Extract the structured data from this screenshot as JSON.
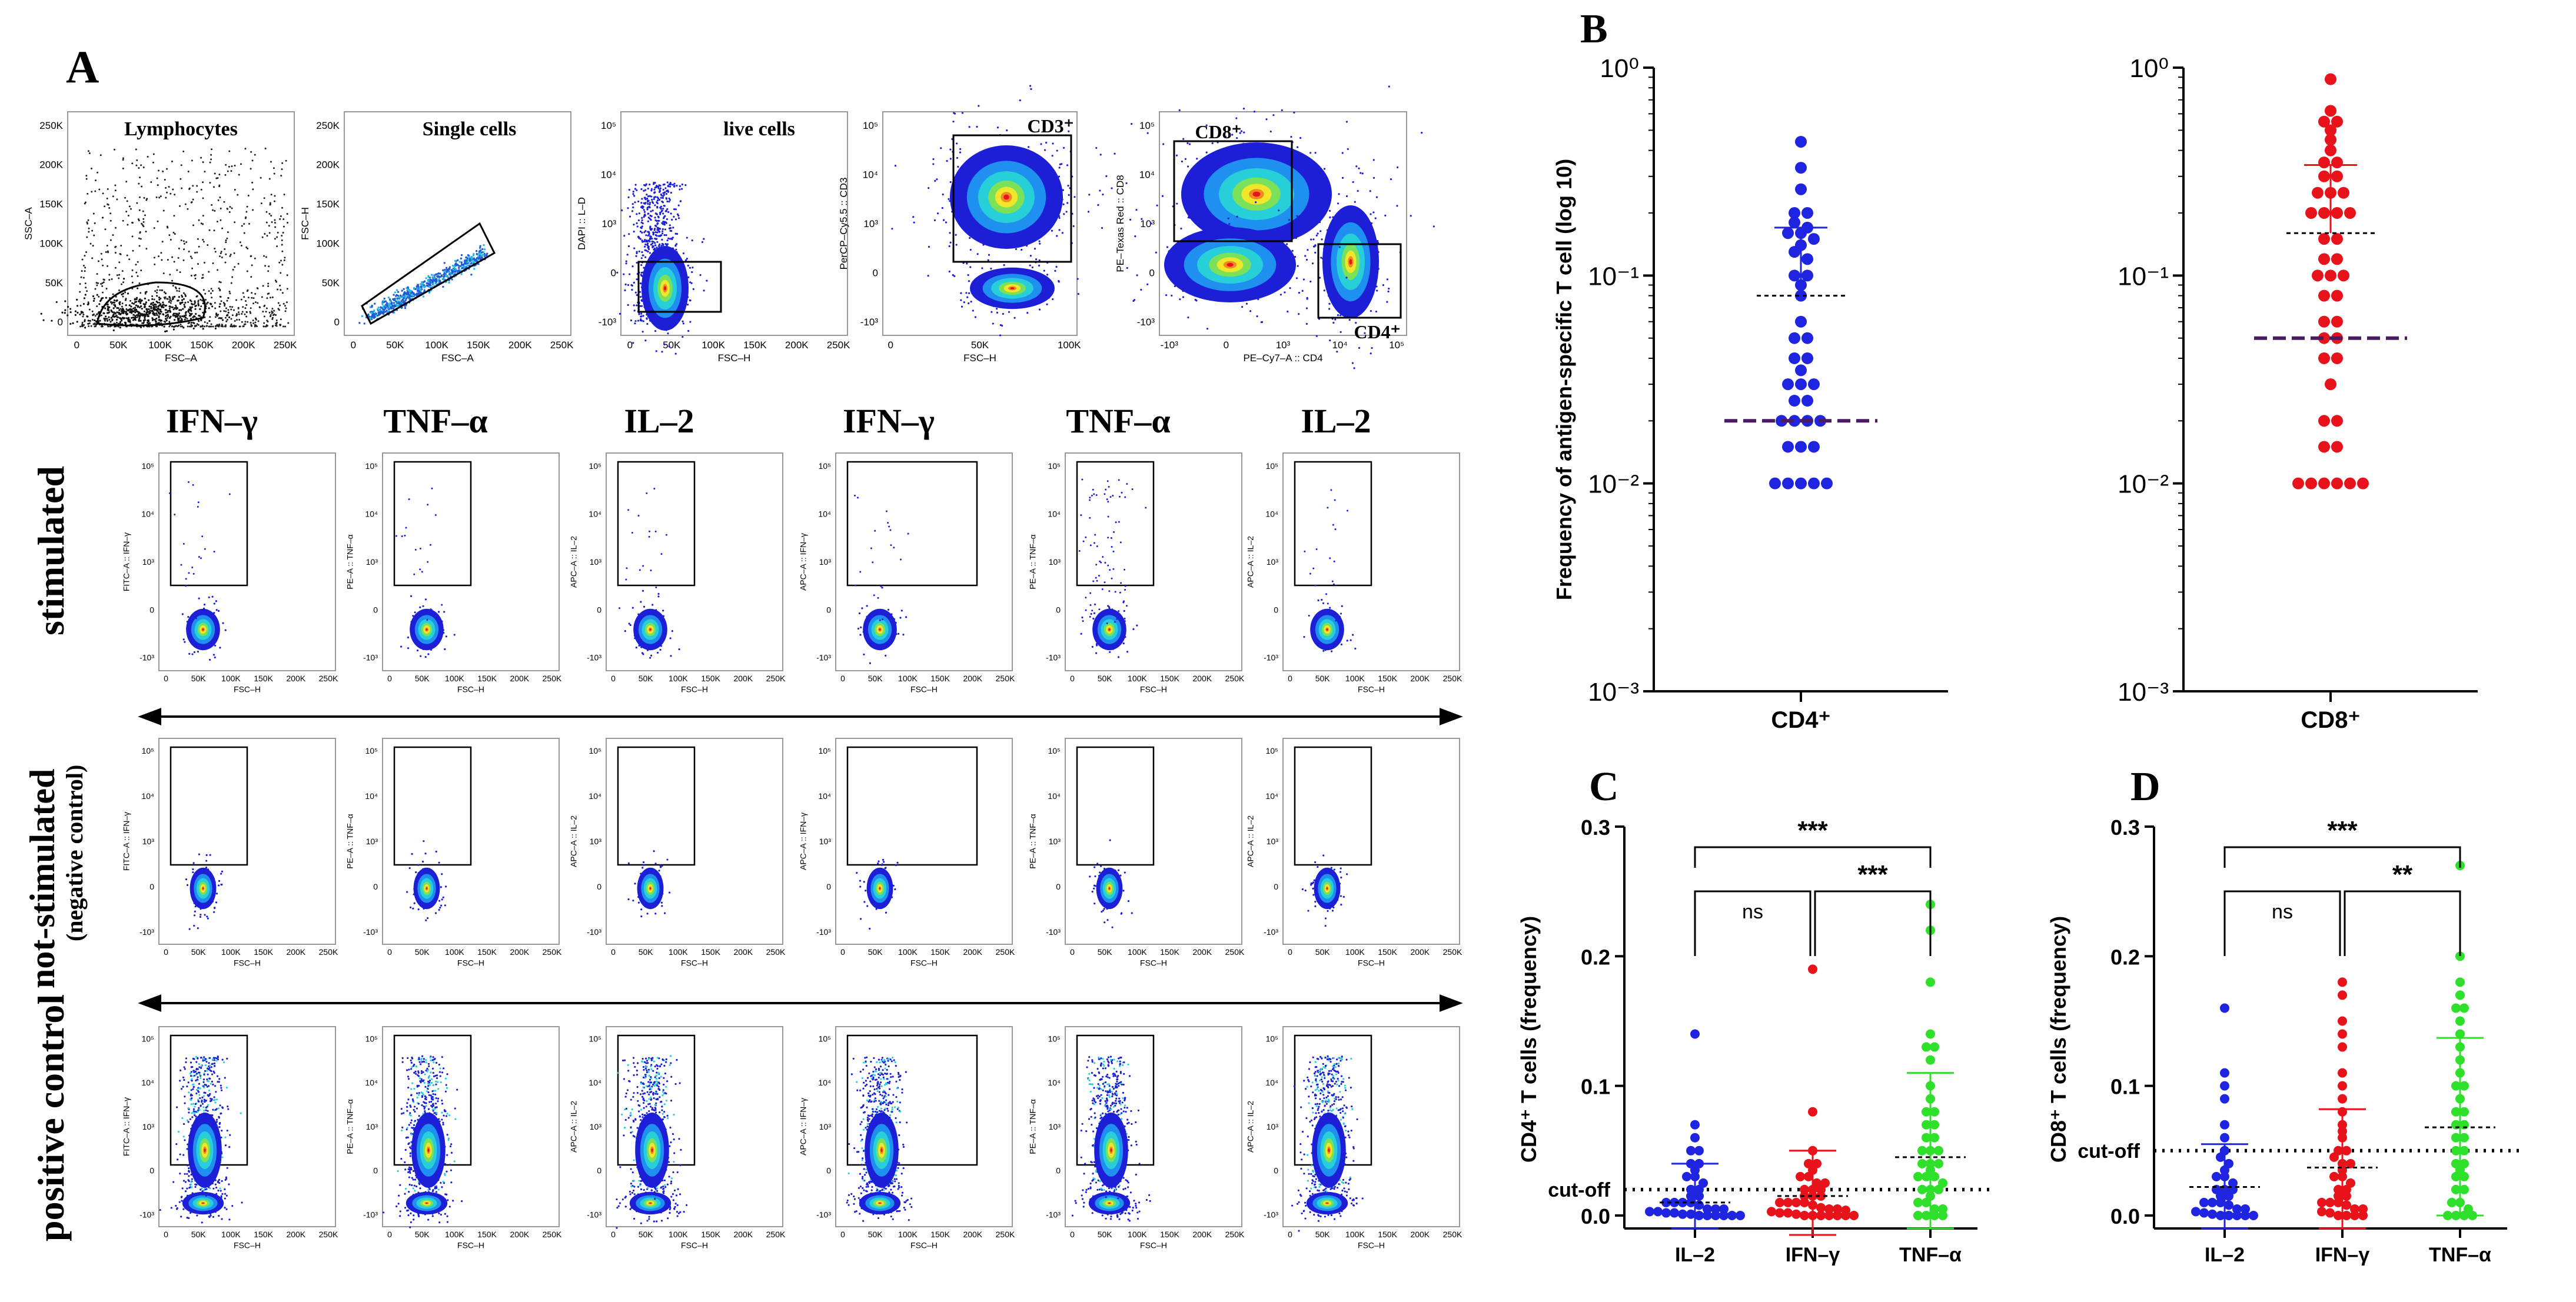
{
  "panel_letters": {
    "A": "A",
    "B": "B",
    "C": "C",
    "D": "D"
  },
  "colors": {
    "cd4_dot": "#1f24e0",
    "cd8_dot": "#e8121b",
    "il2": "#1f24e0",
    "ifng": "#e8121b",
    "tnfa": "#2ee02a",
    "cutoff_line": "#4a1a63",
    "density_low": "#1c1fd6",
    "density_mid": "#27d0d9",
    "density_high": "#f0e62a",
    "density_peak": "#e8121b"
  },
  "gating_row": [
    {
      "gate_label": "Lymphocytes",
      "x_label": "FSC–A",
      "y_label": "SSC–A",
      "x_ticks": [
        "0",
        "50K",
        "100K",
        "150K",
        "200K",
        "250K"
      ],
      "y_ticks": [
        "0",
        "50K",
        "100K",
        "150K",
        "200K",
        "250K"
      ],
      "kind": "scatter"
    },
    {
      "gate_label": "Single cells",
      "x_label": "FSC–A",
      "y_label": "FSC–H",
      "x_ticks": [
        "0",
        "50K",
        "100K",
        "150K",
        "200K",
        "250K"
      ],
      "y_ticks": [
        "0",
        "50K",
        "100K",
        "150K",
        "200K",
        "250K"
      ],
      "kind": "singlets"
    },
    {
      "gate_label": "live cells",
      "x_label": "FSC–H",
      "y_label": "DAPI :: L–D",
      "x_ticks": [
        "0",
        "50K",
        "100K",
        "150K",
        "200K",
        "250K"
      ],
      "y_ticks": [
        "-10³",
        "0",
        "10³",
        "10⁴",
        "10⁵"
      ],
      "kind": "live"
    },
    {
      "gate_label": "CD3⁺",
      "x_label": "FSC–H",
      "y_label": "PerCP–Cy5.5 :: CD3",
      "x_ticks": [
        "0",
        "50K",
        "100K"
      ],
      "y_ticks": [
        "-10³",
        "0",
        "10³",
        "10⁴",
        "10⁵"
      ],
      "kind": "cd3"
    },
    {
      "gate_label": "CD8⁺",
      "gate_label_2": "CD4⁺",
      "x_label": "PE–Cy7–A :: CD4",
      "y_label": "PE–Texas Red :: CD8",
      "x_ticks": [
        "-10³",
        "0",
        "10³",
        "10⁴",
        "10⁵"
      ],
      "y_ticks": [
        "-10³",
        "0",
        "10³",
        "10⁴",
        "10⁵"
      ],
      "kind": "cd4cd8"
    }
  ],
  "cytokine_headers": [
    "IFN–γ",
    "TNF–α",
    "IL–2",
    "IFN–γ",
    "TNF–α",
    "IL–2"
  ],
  "cytokine_y_labels": [
    "FITC–A :: IFN–γ",
    "PE–A :: TNF–α",
    "APC–A :: IL–2",
    "APC–A :: IFN–γ",
    "PE–A :: TNF–α",
    "APC–A :: IL–2"
  ],
  "cytokine_x_label": "FSC–H",
  "cytokine_x_ticks": [
    "0",
    "50K",
    "100K",
    "150K",
    "200K",
    "250K"
  ],
  "cytokine_y_ticks": [
    "-10³",
    "0",
    "10³",
    "10⁴",
    "10⁵"
  ],
  "row_labels": {
    "stimulated": "stimulated",
    "not_stimulated": "not-stimulated",
    "negative_control": "(negative control)",
    "positive_control": "positive control"
  },
  "chart_data": [
    {
      "panel": "B-left",
      "type": "scatter",
      "category": "CD4⁺",
      "ylabel": "Frequency of antigen-specific T cell (log 10)",
      "yscale": "log",
      "ylim": [
        0.001,
        1
      ],
      "y_ticks": [
        "10⁻³",
        "10⁻²",
        "10⁻¹",
        "10⁰"
      ],
      "values": [
        0.44,
        0.33,
        0.26,
        0.2,
        0.2,
        0.18,
        0.17,
        0.16,
        0.16,
        0.15,
        0.14,
        0.13,
        0.12,
        0.1,
        0.1,
        0.09,
        0.08,
        0.06,
        0.05,
        0.05,
        0.04,
        0.04,
        0.035,
        0.03,
        0.03,
        0.03,
        0.025,
        0.025,
        0.02,
        0.02,
        0.02,
        0.02,
        0.015,
        0.015,
        0.015,
        0.01,
        0.01,
        0.01,
        0.01,
        0.01
      ],
      "mean": 0.08,
      "sd_upper": 0.17,
      "cutoff": 0.02
    },
    {
      "panel": "B-right",
      "type": "scatter",
      "category": "CD8⁺",
      "ylabel": "",
      "yscale": "log",
      "ylim": [
        0.001,
        1
      ],
      "y_ticks": [
        "10⁻³",
        "10⁻²",
        "10⁻¹",
        "10⁰"
      ],
      "values": [
        0.88,
        0.62,
        0.55,
        0.55,
        0.5,
        0.45,
        0.4,
        0.35,
        0.35,
        0.3,
        0.3,
        0.25,
        0.25,
        0.25,
        0.2,
        0.2,
        0.2,
        0.2,
        0.15,
        0.15,
        0.12,
        0.12,
        0.1,
        0.1,
        0.1,
        0.08,
        0.08,
        0.06,
        0.06,
        0.05,
        0.05,
        0.04,
        0.04,
        0.03,
        0.02,
        0.02,
        0.015,
        0.015,
        0.01,
        0.01,
        0.01,
        0.01,
        0.01,
        0.01
      ],
      "mean": 0.16,
      "sd_upper": 0.34,
      "cutoff": 0.05
    },
    {
      "panel": "C",
      "type": "scatter",
      "categories": [
        "IL–2",
        "IFN–γ",
        "TNF–α"
      ],
      "ylabel": "CD4⁺ T cells (frequency)",
      "ylim": [
        -0.01,
        0.3
      ],
      "y_ticks": [
        "0.0",
        "0.1",
        "0.2",
        "0.3"
      ],
      "cutoff_label": "cut-off",
      "cutoff": 0.02,
      "series": [
        {
          "name": "IL–2",
          "values": [
            0.14,
            0.07,
            0.06,
            0.05,
            0.05,
            0.04,
            0.04,
            0.035,
            0.03,
            0.03,
            0.025,
            0.02,
            0.02,
            0.015,
            0.015,
            0.01,
            0.01,
            0.01,
            0.01,
            0.008,
            0.005,
            0.005,
            0.005,
            0.003,
            0.003,
            0.002,
            0.002,
            0.001,
            0.001,
            0.0,
            0.0,
            0.0,
            0.0,
            0.0,
            0.0
          ],
          "mean": 0.01,
          "sd_upper": 0.04,
          "sd_lower": -0.01
        },
        {
          "name": "IFN–γ",
          "values": [
            0.19,
            0.08,
            0.05,
            0.04,
            0.04,
            0.035,
            0.03,
            0.03,
            0.025,
            0.025,
            0.02,
            0.02,
            0.02,
            0.015,
            0.015,
            0.015,
            0.01,
            0.01,
            0.01,
            0.01,
            0.008,
            0.006,
            0.005,
            0.005,
            0.004,
            0.003,
            0.002,
            0.002,
            0.001,
            0.0,
            0.0,
            0.0,
            0.0,
            0.0,
            0.0,
            0.0
          ],
          "mean": 0.015,
          "sd_upper": 0.05,
          "sd_lower": -0.015
        },
        {
          "name": "TNF–α",
          "values": [
            0.24,
            0.22,
            0.18,
            0.14,
            0.13,
            0.13,
            0.12,
            0.1,
            0.09,
            0.08,
            0.08,
            0.07,
            0.07,
            0.06,
            0.06,
            0.05,
            0.05,
            0.05,
            0.04,
            0.04,
            0.04,
            0.035,
            0.03,
            0.03,
            0.03,
            0.025,
            0.02,
            0.02,
            0.02,
            0.015,
            0.01,
            0.01,
            0.005,
            0.005,
            0.0,
            0.0,
            0.0,
            0.0
          ],
          "mean": 0.045,
          "sd_upper": 0.11,
          "sd_lower": -0.01
        }
      ],
      "significance": [
        {
          "from": "IL–2",
          "to": "TNF–α",
          "label": "***"
        },
        {
          "from": "IL–2",
          "to": "IFN–γ",
          "label": "ns"
        },
        {
          "from": "IFN–γ",
          "to": "TNF–α",
          "label": "***"
        }
      ]
    },
    {
      "panel": "D",
      "type": "scatter",
      "categories": [
        "IL–2",
        "IFN–γ",
        "TNF–α"
      ],
      "ylabel": "CD8⁺ T cells (frequency)",
      "ylim": [
        -0.01,
        0.3
      ],
      "y_ticks": [
        "0.0",
        "0.1",
        "0.2",
        "0.3"
      ],
      "cutoff_label": "cut-off",
      "cutoff": 0.05,
      "series": [
        {
          "name": "IL–2",
          "values": [
            0.16,
            0.11,
            0.1,
            0.09,
            0.07,
            0.06,
            0.05,
            0.045,
            0.04,
            0.035,
            0.03,
            0.03,
            0.025,
            0.02,
            0.02,
            0.02,
            0.015,
            0.015,
            0.01,
            0.01,
            0.01,
            0.008,
            0.005,
            0.005,
            0.003,
            0.002,
            0.001,
            0.0,
            0.0,
            0.0,
            0.0,
            0.0
          ],
          "mean": 0.022,
          "sd_upper": 0.055,
          "sd_lower": -0.01
        },
        {
          "name": "IFN–γ",
          "values": [
            0.18,
            0.17,
            0.15,
            0.14,
            0.13,
            0.11,
            0.1,
            0.09,
            0.08,
            0.07,
            0.065,
            0.06,
            0.05,
            0.05,
            0.045,
            0.04,
            0.04,
            0.035,
            0.03,
            0.03,
            0.025,
            0.02,
            0.02,
            0.015,
            0.015,
            0.01,
            0.01,
            0.01,
            0.008,
            0.005,
            0.005,
            0.003,
            0.002,
            0.0,
            0.0,
            0.0,
            0.0
          ],
          "mean": 0.037,
          "sd_upper": 0.082,
          "sd_lower": -0.01
        },
        {
          "name": "TNF–α",
          "values": [
            0.27,
            0.2,
            0.18,
            0.17,
            0.16,
            0.16,
            0.15,
            0.14,
            0.13,
            0.12,
            0.11,
            0.1,
            0.1,
            0.09,
            0.08,
            0.08,
            0.07,
            0.07,
            0.06,
            0.06,
            0.05,
            0.05,
            0.04,
            0.04,
            0.035,
            0.03,
            0.03,
            0.02,
            0.02,
            0.01,
            0.01,
            0.005,
            0.0,
            0.0,
            0.0,
            0.0
          ],
          "mean": 0.068,
          "sd_upper": 0.137,
          "sd_lower": 0.0
        }
      ],
      "significance": [
        {
          "from": "IL–2",
          "to": "TNF–α",
          "label": "***"
        },
        {
          "from": "IL–2",
          "to": "IFN–γ",
          "label": "ns"
        },
        {
          "from": "IFN–γ",
          "to": "TNF–α",
          "label": "**"
        }
      ]
    }
  ]
}
